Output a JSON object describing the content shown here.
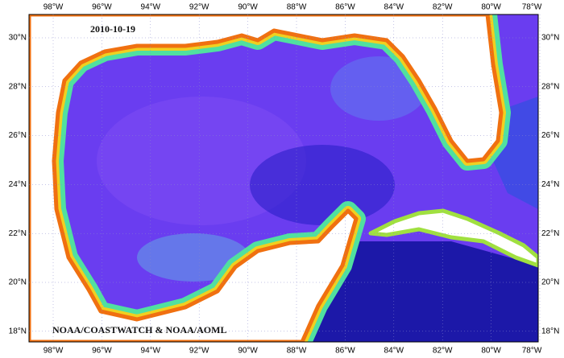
{
  "date": "2010-10-19",
  "credit": "NOAA/COASTWATCH & NOAA/AOML",
  "lon_labels": [
    "98°W",
    "96°W",
    "94°W",
    "92°W",
    "90°W",
    "88°W",
    "86°W",
    "84°W",
    "82°W",
    "80°W",
    "78°W"
  ],
  "lat_labels": [
    "30°N",
    "28°N",
    "26°N",
    "24°N",
    "22°N",
    "20°N",
    "18°N"
  ]
}
